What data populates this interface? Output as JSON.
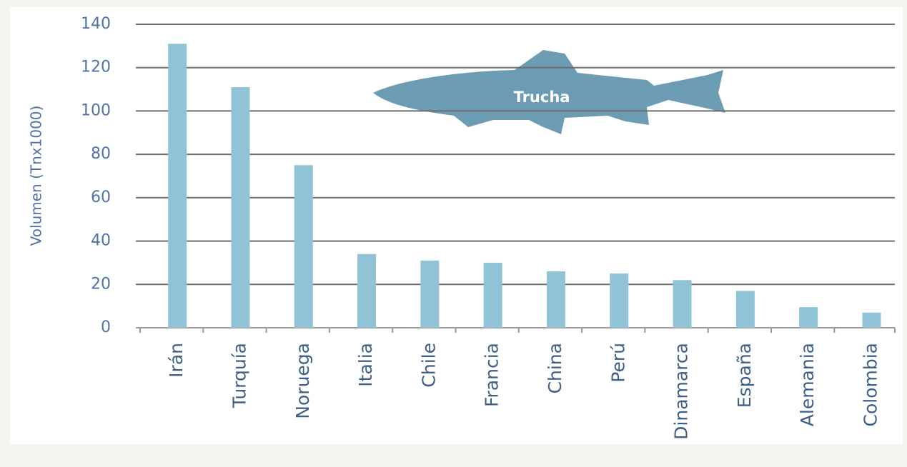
{
  "chart_data": {
    "type": "bar",
    "y_label": "Volumen (Tnx1000)",
    "annotation": "Trucha",
    "categories": [
      "Irán",
      "Turquía",
      "Noruega",
      "Italia",
      "Chile",
      "Francia",
      "China",
      "Perú",
      "Dinamarca",
      "España",
      "Alemania",
      "Colombia"
    ],
    "values": [
      131,
      111,
      75,
      34,
      31,
      30,
      26,
      25,
      22,
      17,
      9.5,
      7
    ],
    "color": "#91c3d6",
    "ylim": [
      0,
      140
    ],
    "yticks": [
      0,
      20,
      40,
      60,
      80,
      100,
      120,
      140
    ],
    "grid": true
  }
}
